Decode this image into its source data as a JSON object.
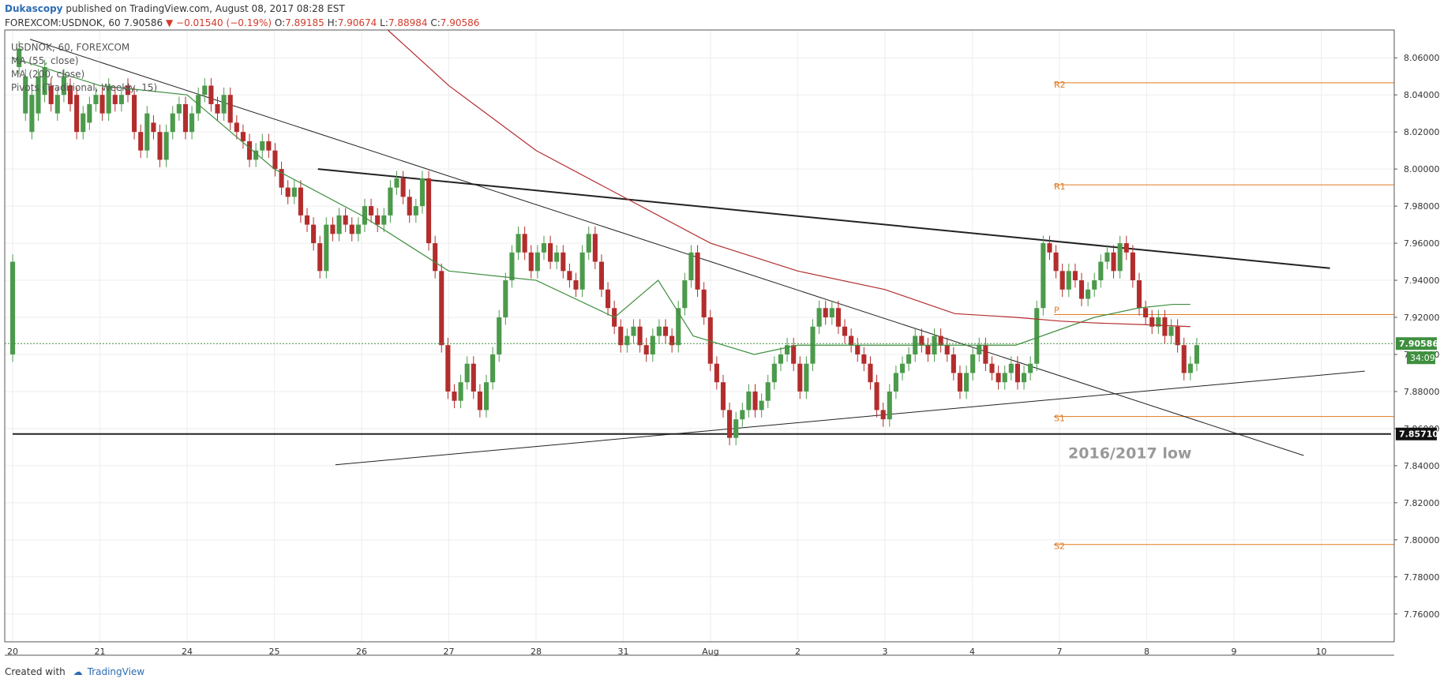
{
  "header": {
    "author": "Dukascopy",
    "published": "published on TradingView.com, August 08, 2017 08:28 EST"
  },
  "quote": {
    "symbol": "FOREXCOM:USDNOK, 60",
    "last": "7.90586",
    "arrow": "▼",
    "change": "−0.01540 (−0.19%)",
    "o_label": "O:",
    "o": "7.89185",
    "h_label": "H:",
    "h": "7.90674",
    "l_label": "L:",
    "l": "7.88984",
    "c_label": "C:",
    "c": "7.90586"
  },
  "legend": [
    "USDNOK, 60, FOREXCOM",
    "MA (55, close)",
    "MA (200, close)",
    "Pivots (Traditional, Weekly, 15)"
  ],
  "footer": {
    "created_with": "Created with",
    "brand": "TradingView"
  },
  "colors": {
    "bull": "#4c9a4c",
    "bear": "#b32d2d",
    "ma55": "#3f8f3f",
    "ma200": "#b32d2d",
    "pivot": "#e07a1f",
    "trend": "#222222",
    "price_tag": "#3f8f3f"
  },
  "chart_data": {
    "type": "line",
    "title": "USDNOK, 60, FOREXCOM",
    "ylim": [
      7.745,
      8.075
    ],
    "y_ticks": [
      "8.06000",
      "8.04000",
      "8.02000",
      "8.00000",
      "7.98000",
      "7.96000",
      "7.94000",
      "7.92000",
      "7.90000",
      "7.88000",
      "7.86000",
      "7.84000",
      "7.82000",
      "7.80000",
      "7.78000",
      "7.76000"
    ],
    "x_ticks": [
      "20",
      "21",
      "24",
      "25",
      "26",
      "27",
      "28",
      "31",
      "Aug",
      "2",
      "3",
      "4",
      "7",
      "8",
      "9",
      "10"
    ],
    "price_tags": [
      {
        "value": 7.90586,
        "label": "7.90586",
        "color": "#3f8f3f"
      },
      {
        "value": 7.8571,
        "label": "7.85710",
        "color": "#111111"
      }
    ],
    "countdown": "34:09",
    "series": [
      {
        "name": "MA (55, close)",
        "x": [
          0,
          1,
          2,
          3,
          4,
          5,
          6,
          6.9,
          7.4,
          7.8,
          8.5,
          9,
          10,
          10.8,
          11.5,
          12.4,
          12.9,
          13.3,
          13.5
        ],
        "y": [
          8.06,
          8.045,
          8.04,
          8.0,
          7.975,
          7.945,
          7.94,
          7.92,
          7.94,
          7.91,
          7.9,
          7.905,
          7.905,
          7.905,
          7.905,
          7.92,
          7.925,
          7.927,
          7.927
        ]
      },
      {
        "name": "MA (200, close)",
        "x": [
          4.3,
          5,
          6,
          7,
          8,
          9,
          10,
          10.8,
          11.5,
          12,
          12.4,
          13,
          13.5
        ],
        "y": [
          8.075,
          8.045,
          8.01,
          7.985,
          7.96,
          7.945,
          7.935,
          7.922,
          7.92,
          7.918,
          7.917,
          7.916,
          7.915
        ]
      }
    ],
    "pivots": [
      {
        "label": "R2",
        "value": 8.0465
      },
      {
        "label": "R1",
        "value": 7.9915
      },
      {
        "label": "P",
        "value": 7.9215
      },
      {
        "label": "S1",
        "value": 7.8665
      },
      {
        "label": "S2",
        "value": 7.7975
      }
    ],
    "trendlines": [
      {
        "x": [
          3.5,
          15.1
        ],
        "y": [
          8.0,
          7.9465
        ],
        "width": 2
      },
      {
        "x": [
          0.2,
          14.8
        ],
        "y": [
          8.07,
          7.8455
        ],
        "width": 1
      },
      {
        "x": [
          3.7,
          15.5
        ],
        "y": [
          7.8405,
          7.891
        ],
        "width": 1
      },
      {
        "x": [
          0,
          15.8
        ],
        "y": [
          7.8571,
          7.8571
        ],
        "width": 2
      }
    ],
    "annotations": [
      {
        "text": "2016/2017 low",
        "x": 12.1,
        "y": 7.8465
      }
    ],
    "candles": [
      [
        7.9,
        7.95
      ],
      [
        8.055,
        8.065
      ],
      [
        8.03,
        8.05
      ],
      [
        8.02,
        8.04
      ],
      [
        8.03,
        8.05
      ],
      [
        8.04,
        8.055
      ],
      [
        8.045,
        8.035
      ],
      [
        8.03,
        8.04
      ],
      [
        8.04,
        8.05
      ],
      [
        8.045,
        8.035
      ],
      [
        8.04,
        8.02
      ],
      [
        8.02,
        8.03
      ],
      [
        8.025,
        8.035
      ],
      [
        8.035,
        8.04
      ],
      [
        8.04,
        8.03
      ],
      [
        8.03,
        8.045
      ],
      [
        8.04,
        8.035
      ],
      [
        8.035,
        8.04
      ],
      [
        8.045,
        8.04
      ],
      [
        8.04,
        8.02
      ],
      [
        8.02,
        8.01
      ],
      [
        8.01,
        8.03
      ],
      [
        8.025,
        8.02
      ],
      [
        8.02,
        8.005
      ],
      [
        8.005,
        8.02
      ],
      [
        8.02,
        8.03
      ],
      [
        8.03,
        8.035
      ],
      [
        8.035,
        8.02
      ],
      [
        8.02,
        8.03
      ],
      [
        8.03,
        8.04
      ],
      [
        8.04,
        8.045
      ],
      [
        8.045,
        8.035
      ],
      [
        8.035,
        8.03
      ],
      [
        8.03,
        8.04
      ],
      [
        8.04,
        8.025
      ],
      [
        8.025,
        8.02
      ],
      [
        8.02,
        8.015
      ],
      [
        8.015,
        8.005
      ],
      [
        8.005,
        8.01
      ],
      [
        8.01,
        8.015
      ],
      [
        8.015,
        8.01
      ],
      [
        8.01,
        8.0
      ],
      [
        8.0,
        7.99
      ],
      [
        7.99,
        7.985
      ],
      [
        7.985,
        7.99
      ],
      [
        7.99,
        7.975
      ],
      [
        7.975,
        7.97
      ],
      [
        7.97,
        7.96
      ],
      [
        7.96,
        7.945
      ],
      [
        7.945,
        7.97
      ],
      [
        7.97,
        7.965
      ],
      [
        7.965,
        7.975
      ],
      [
        7.975,
        7.97
      ],
      [
        7.97,
        7.965
      ],
      [
        7.965,
        7.97
      ],
      [
        7.97,
        7.98
      ],
      [
        7.98,
        7.975
      ],
      [
        7.975,
        7.97
      ],
      [
        7.97,
        7.975
      ],
      [
        7.975,
        7.99
      ],
      [
        7.99,
        7.995
      ],
      [
        7.995,
        7.985
      ],
      [
        7.985,
        7.975
      ],
      [
        7.975,
        7.98
      ],
      [
        7.98,
        7.995
      ],
      [
        7.995,
        7.96
      ],
      [
        7.96,
        7.945
      ],
      [
        7.945,
        7.905
      ],
      [
        7.905,
        7.88
      ],
      [
        7.88,
        7.875
      ],
      [
        7.875,
        7.885
      ],
      [
        7.885,
        7.895
      ],
      [
        7.895,
        7.88
      ],
      [
        7.88,
        7.87
      ],
      [
        7.87,
        7.885
      ],
      [
        7.885,
        7.9
      ],
      [
        7.9,
        7.92
      ],
      [
        7.92,
        7.94
      ],
      [
        7.94,
        7.955
      ],
      [
        7.955,
        7.965
      ],
      [
        7.965,
        7.955
      ],
      [
        7.955,
        7.945
      ],
      [
        7.945,
        7.955
      ],
      [
        7.955,
        7.96
      ],
      [
        7.96,
        7.95
      ],
      [
        7.95,
        7.955
      ],
      [
        7.955,
        7.945
      ],
      [
        7.945,
        7.94
      ],
      [
        7.94,
        7.935
      ],
      [
        7.935,
        7.955
      ],
      [
        7.955,
        7.965
      ],
      [
        7.965,
        7.95
      ],
      [
        7.95,
        7.935
      ],
      [
        7.935,
        7.925
      ],
      [
        7.925,
        7.915
      ],
      [
        7.915,
        7.905
      ],
      [
        7.905,
        7.91
      ],
      [
        7.91,
        7.915
      ],
      [
        7.915,
        7.905
      ],
      [
        7.905,
        7.9
      ],
      [
        7.9,
        7.91
      ],
      [
        7.91,
        7.915
      ],
      [
        7.915,
        7.91
      ],
      [
        7.91,
        7.905
      ],
      [
        7.905,
        7.925
      ],
      [
        7.925,
        7.94
      ],
      [
        7.94,
        7.955
      ],
      [
        7.955,
        7.935
      ],
      [
        7.935,
        7.92
      ],
      [
        7.92,
        7.895
      ],
      [
        7.895,
        7.885
      ],
      [
        7.885,
        7.87
      ],
      [
        7.87,
        7.855
      ],
      [
        7.855,
        7.865
      ],
      [
        7.865,
        7.87
      ],
      [
        7.87,
        7.88
      ],
      [
        7.88,
        7.87
      ],
      [
        7.87,
        7.875
      ],
      [
        7.875,
        7.885
      ],
      [
        7.885,
        7.895
      ],
      [
        7.895,
        7.9
      ],
      [
        7.9,
        7.905
      ],
      [
        7.905,
        7.895
      ],
      [
        7.895,
        7.88
      ],
      [
        7.88,
        7.895
      ],
      [
        7.895,
        7.915
      ],
      [
        7.915,
        7.925
      ],
      [
        7.925,
        7.92
      ],
      [
        7.92,
        7.925
      ],
      [
        7.925,
        7.915
      ],
      [
        7.915,
        7.91
      ],
      [
        7.91,
        7.905
      ],
      [
        7.905,
        7.9
      ],
      [
        7.9,
        7.895
      ],
      [
        7.895,
        7.885
      ],
      [
        7.885,
        7.87
      ],
      [
        7.87,
        7.865
      ],
      [
        7.865,
        7.88
      ],
      [
        7.88,
        7.89
      ],
      [
        7.89,
        7.895
      ],
      [
        7.895,
        7.9
      ],
      [
        7.9,
        7.91
      ],
      [
        7.91,
        7.905
      ],
      [
        7.905,
        7.9
      ],
      [
        7.9,
        7.91
      ],
      [
        7.91,
        7.905
      ],
      [
        7.905,
        7.9
      ],
      [
        7.9,
        7.89
      ],
      [
        7.89,
        7.88
      ],
      [
        7.88,
        7.89
      ],
      [
        7.89,
        7.9
      ],
      [
        7.9,
        7.905
      ],
      [
        7.905,
        7.895
      ],
      [
        7.895,
        7.89
      ],
      [
        7.89,
        7.885
      ],
      [
        7.885,
        7.89
      ],
      [
        7.89,
        7.895
      ],
      [
        7.895,
        7.885
      ],
      [
        7.885,
        7.89
      ],
      [
        7.89,
        7.895
      ],
      [
        7.895,
        7.925
      ],
      [
        7.925,
        7.96
      ],
      [
        7.96,
        7.955
      ],
      [
        7.955,
        7.945
      ],
      [
        7.945,
        7.935
      ],
      [
        7.935,
        7.945
      ],
      [
        7.945,
        7.94
      ],
      [
        7.94,
        7.93
      ],
      [
        7.93,
        7.935
      ],
      [
        7.935,
        7.94
      ],
      [
        7.94,
        7.95
      ],
      [
        7.95,
        7.955
      ],
      [
        7.955,
        7.945
      ],
      [
        7.945,
        7.96
      ],
      [
        7.96,
        7.955
      ],
      [
        7.955,
        7.94
      ],
      [
        7.94,
        7.925
      ],
      [
        7.925,
        7.92
      ],
      [
        7.92,
        7.915
      ],
      [
        7.915,
        7.92
      ],
      [
        7.92,
        7.91
      ],
      [
        7.91,
        7.915
      ],
      [
        7.915,
        7.905
      ],
      [
        7.905,
        7.89
      ],
      [
        7.89,
        7.895
      ],
      [
        7.895,
        7.905
      ]
    ]
  }
}
